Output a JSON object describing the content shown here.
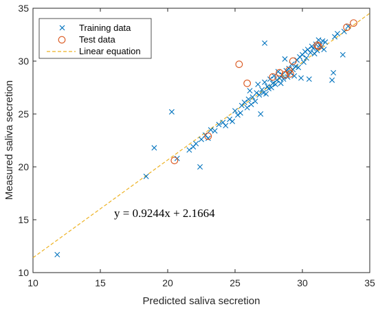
{
  "chart_data": {
    "type": "scatter",
    "xlabel": "Predicted saliva secretion",
    "ylabel": "Measured saliva secretion",
    "xlim": [
      10,
      35
    ],
    "ylim": [
      10,
      35
    ],
    "xticks": [
      "10",
      "15",
      "20",
      "25",
      "30",
      "35"
    ],
    "yticks": [
      "10",
      "15",
      "20",
      "25",
      "30",
      "35"
    ],
    "grid": false,
    "legend_position": "top-left",
    "equation": "y = 0.9244x + 2.1664",
    "colors": {
      "training": "#0072BD",
      "test": "#D95319",
      "fit": "#EDB120",
      "axis": "#262626"
    },
    "legend": [
      "Training data",
      "Test data",
      "Linear equation"
    ],
    "series": [
      {
        "name": "Training data",
        "marker": "x",
        "points": [
          [
            11.8,
            11.7
          ],
          [
            18.4,
            19.1
          ],
          [
            19.0,
            21.8
          ],
          [
            20.3,
            25.2
          ],
          [
            20.7,
            20.8
          ],
          [
            21.6,
            21.6
          ],
          [
            21.9,
            21.9
          ],
          [
            22.1,
            22.2
          ],
          [
            22.4,
            20.0
          ],
          [
            22.5,
            22.6
          ],
          [
            22.8,
            23.0
          ],
          [
            23.0,
            22.7
          ],
          [
            23.2,
            23.5
          ],
          [
            23.5,
            23.4
          ],
          [
            23.8,
            24.0
          ],
          [
            24.1,
            24.2
          ],
          [
            24.3,
            23.9
          ],
          [
            24.6,
            24.5
          ],
          [
            24.8,
            24.3
          ],
          [
            25.0,
            25.3
          ],
          [
            25.2,
            24.9
          ],
          [
            25.4,
            25.1
          ],
          [
            25.5,
            25.8
          ],
          [
            25.7,
            26.1
          ],
          [
            25.9,
            25.6
          ],
          [
            26.0,
            26.4
          ],
          [
            26.1,
            27.2
          ],
          [
            26.2,
            25.9
          ],
          [
            26.3,
            26.6
          ],
          [
            26.5,
            26.2
          ],
          [
            26.6,
            27.0
          ],
          [
            26.7,
            27.8
          ],
          [
            26.8,
            26.8
          ],
          [
            26.9,
            25.0
          ],
          [
            27.0,
            27.3
          ],
          [
            27.1,
            27.0
          ],
          [
            27.2,
            31.7
          ],
          [
            27.2,
            28.0
          ],
          [
            27.3,
            26.9
          ],
          [
            27.4,
            27.6
          ],
          [
            27.5,
            27.4
          ],
          [
            27.6,
            28.3
          ],
          [
            27.7,
            27.5
          ],
          [
            27.8,
            27.9
          ],
          [
            27.9,
            28.6
          ],
          [
            28.0,
            27.8
          ],
          [
            28.1,
            28.2
          ],
          [
            28.2,
            29.0
          ],
          [
            28.3,
            28.4
          ],
          [
            28.4,
            27.9
          ],
          [
            28.5,
            28.7
          ],
          [
            28.6,
            28.3
          ],
          [
            28.7,
            30.2
          ],
          [
            28.8,
            29.1
          ],
          [
            28.9,
            28.5
          ],
          [
            29.0,
            29.3
          ],
          [
            29.1,
            28.9
          ],
          [
            29.2,
            29.7
          ],
          [
            29.3,
            29.2
          ],
          [
            29.4,
            28.6
          ],
          [
            29.5,
            29.5
          ],
          [
            29.6,
            30.1
          ],
          [
            29.7,
            29.4
          ],
          [
            29.8,
            30.4
          ],
          [
            29.9,
            28.4
          ],
          [
            30.0,
            30.6
          ],
          [
            30.1,
            29.9
          ],
          [
            30.2,
            30.9
          ],
          [
            30.3,
            30.3
          ],
          [
            30.4,
            31.1
          ],
          [
            30.5,
            28.3
          ],
          [
            30.6,
            30.8
          ],
          [
            30.7,
            31.4
          ],
          [
            30.8,
            31.2
          ],
          [
            30.9,
            30.7
          ],
          [
            31.0,
            31.6
          ],
          [
            31.1,
            31.0
          ],
          [
            31.2,
            32.0
          ],
          [
            31.3,
            31.5
          ],
          [
            31.4,
            31.3
          ],
          [
            31.5,
            31.9
          ],
          [
            31.6,
            31.1
          ],
          [
            31.7,
            31.8
          ],
          [
            32.2,
            28.2
          ],
          [
            32.3,
            28.9
          ],
          [
            32.4,
            32.3
          ],
          [
            32.6,
            32.6
          ],
          [
            33.0,
            30.6
          ],
          [
            33.1,
            32.8
          ],
          [
            33.4,
            33.3
          ]
        ]
      },
      {
        "name": "Test data",
        "marker": "o",
        "points": [
          [
            20.5,
            20.6
          ],
          [
            23.0,
            22.9
          ],
          [
            25.3,
            29.7
          ],
          [
            25.9,
            27.9
          ],
          [
            27.8,
            28.5
          ],
          [
            28.3,
            28.9
          ],
          [
            28.7,
            28.7
          ],
          [
            29.0,
            29.1
          ],
          [
            29.1,
            28.8
          ],
          [
            29.3,
            30.0
          ],
          [
            31.1,
            31.5
          ],
          [
            31.2,
            31.4
          ],
          [
            33.3,
            33.2
          ],
          [
            33.8,
            33.6
          ]
        ]
      },
      {
        "name": "Linear equation",
        "type": "line",
        "slope": 0.9244,
        "intercept": 2.1664,
        "style": "dashed"
      }
    ]
  }
}
